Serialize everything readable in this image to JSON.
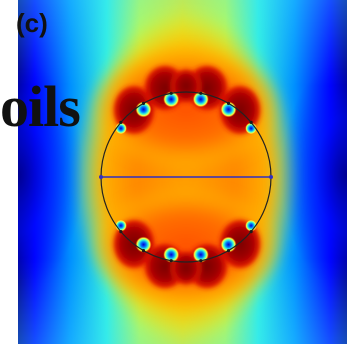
{
  "figure": {
    "panel_label": "(c)",
    "overlay_text": "oils",
    "colors": {
      "colormap": [
        "#00008f",
        "#0000ff",
        "#0080ff",
        "#00ffff",
        "#80ff80",
        "#ffff00",
        "#ff8000",
        "#ff0000",
        "#800000"
      ],
      "circle": "#222222",
      "diameter_line": "#3030c0",
      "conductor_marker": "#1a1a1a"
    },
    "top_conductor_count": 6,
    "bottom_conductor_count": 6
  }
}
